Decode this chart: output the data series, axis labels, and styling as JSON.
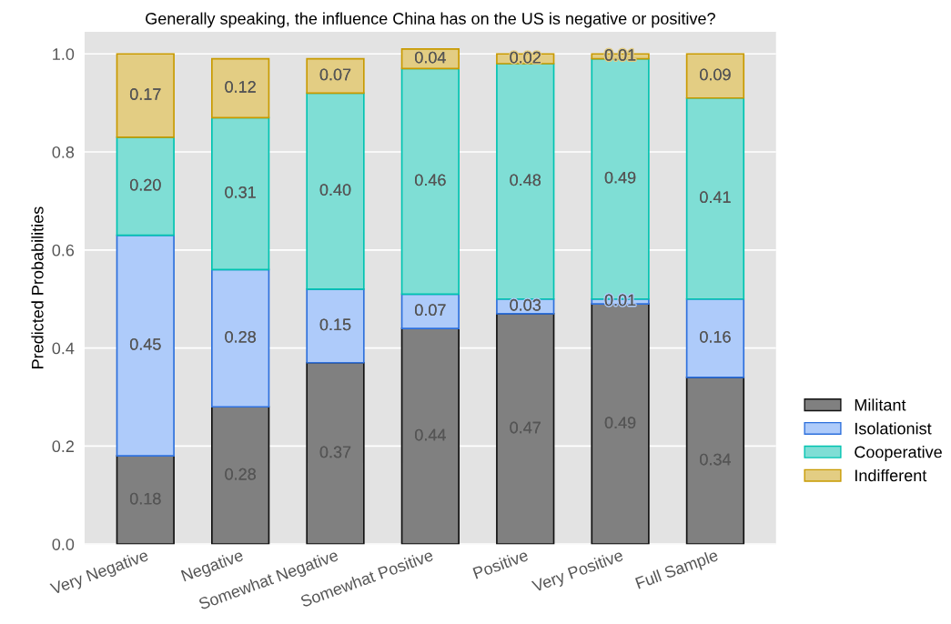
{
  "chart_data": {
    "type": "bar",
    "stacked": true,
    "title": "Generally speaking, the influence China has on the US is negative or positive?",
    "ylabel": "Predicted Probabilities",
    "categories": [
      "Very Negative",
      "Negative",
      "Somewhat Negative",
      "Somewhat Positive",
      "Positive",
      "Very Positive",
      "Full Sample"
    ],
    "series": [
      {
        "name": "Militant",
        "color": "#808080",
        "values": [
          0.18,
          0.28,
          0.37,
          0.44,
          0.47,
          0.49,
          0.34
        ],
        "value_labels": [
          "0.18",
          "0.28",
          "0.37",
          "0.44",
          "0.47",
          "0.49",
          "0.34"
        ]
      },
      {
        "name": "Isolationist",
        "color": "#aecbfa",
        "values": [
          0.45,
          0.28,
          0.15,
          0.07,
          0.03,
          0.01,
          0.16
        ],
        "value_labels": [
          "0.45",
          "0.28",
          "0.15",
          "0.07",
          "0.03",
          "0.01",
          "0.16"
        ]
      },
      {
        "name": "Cooperative",
        "color": "#7fded5",
        "values": [
          0.2,
          0.31,
          0.4,
          0.46,
          0.48,
          0.49,
          0.41
        ],
        "value_labels": [
          "0.20",
          "0.31",
          "0.40",
          "0.46",
          "0.48",
          "0.49",
          "0.41"
        ]
      },
      {
        "name": "Indifferent",
        "color": "#e3cd83",
        "values": [
          0.17,
          0.12,
          0.07,
          0.04,
          0.02,
          0.01,
          0.09
        ],
        "value_labels": [
          "0.17",
          "0.12",
          "0.07",
          "0.04",
          "0.02",
          "0.01",
          "0.09"
        ]
      }
    ],
    "ylim": [
      0,
      1.045
    ],
    "yticks": [
      {
        "value": 0,
        "label": "0.0"
      },
      {
        "value": 0.2,
        "label": "0.2"
      },
      {
        "value": 0.4,
        "label": "0.4"
      },
      {
        "value": 0.6,
        "label": "0.6"
      },
      {
        "value": 0.8,
        "label": "0.8"
      },
      {
        "value": 1,
        "label": "1.0"
      }
    ],
    "grid": "y",
    "legend": "right"
  }
}
